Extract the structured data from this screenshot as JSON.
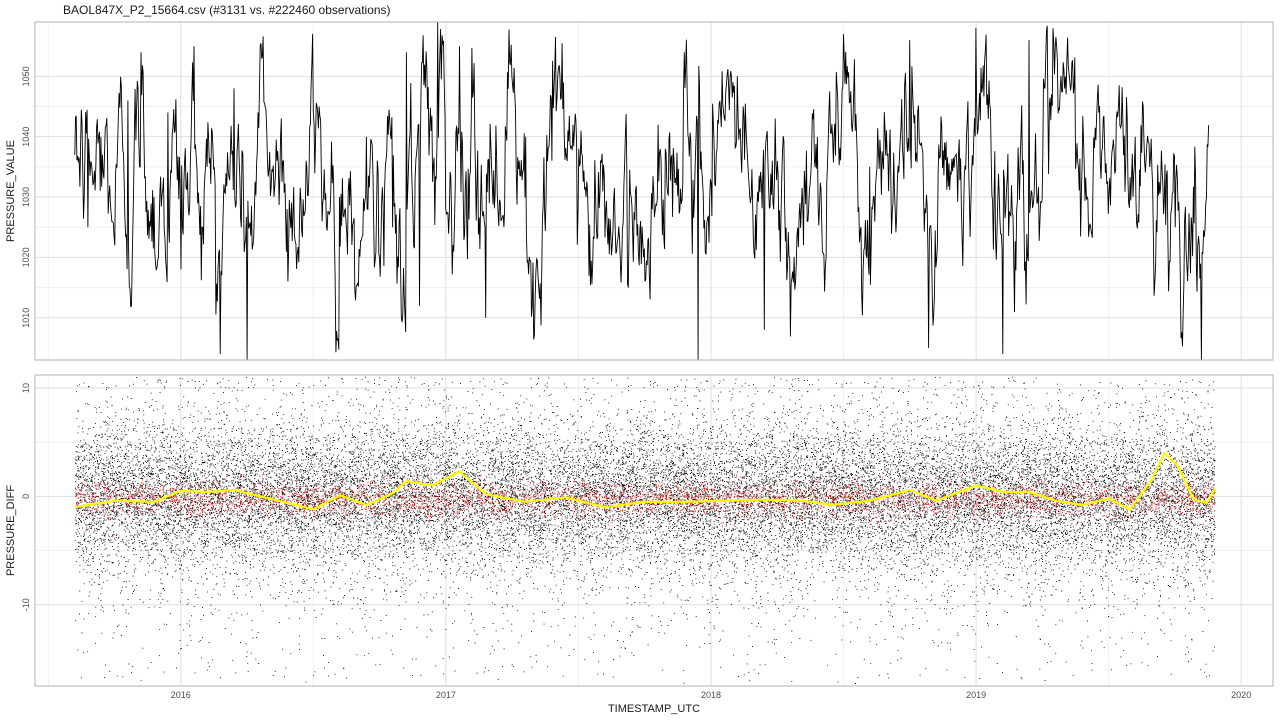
{
  "title": "BAOL847X_P2_15664.csv (#3131 vs. #222460 observations)",
  "colors": {
    "panel_border": "#b3b3b3",
    "grid_major": "#dedede",
    "grid_minor": "#efefef",
    "line": "#000000",
    "scatter": "#000000",
    "red_points": "#cc0000",
    "smooth": "#ffff00",
    "axis_text": "#4d4d4d"
  },
  "chart_data": [
    {
      "type": "line",
      "name": "top-panel",
      "ylabel": "PRESSURE_VALUE",
      "xlim": [
        2015.45,
        2020.12
      ],
      "ylim": [
        1003,
        1059
      ],
      "y_ticks": [
        1010,
        1020,
        1030,
        1040,
        1050
      ],
      "x_ticks": [
        2016,
        2017,
        2018,
        2019,
        2020
      ],
      "grid": true,
      "summary": "daily pressure series ~1003–1059 hPa, dense oscillations",
      "values": [
        {
          "x": 2015.6,
          "y": 1037
        },
        {
          "x": 2015.65,
          "y": 1025
        },
        {
          "x": 2015.7,
          "y": 1040
        },
        {
          "x": 2015.75,
          "y": 1022
        },
        {
          "x": 2015.8,
          "y": 1046
        },
        {
          "x": 2015.85,
          "y": 1054
        },
        {
          "x": 2015.9,
          "y": 1030
        },
        {
          "x": 2015.95,
          "y": 1044
        },
        {
          "x": 2016.0,
          "y": 1018
        },
        {
          "x": 2016.05,
          "y": 1055
        },
        {
          "x": 2016.1,
          "y": 1035
        },
        {
          "x": 2016.15,
          "y": 1004
        },
        {
          "x": 2016.2,
          "y": 1048
        },
        {
          "x": 2016.25,
          "y": 1003
        },
        {
          "x": 2016.3,
          "y": 1055
        },
        {
          "x": 2016.4,
          "y": 1028
        },
        {
          "x": 2016.5,
          "y": 1044
        },
        {
          "x": 2016.6,
          "y": 1030
        },
        {
          "x": 2016.7,
          "y": 1040
        },
        {
          "x": 2016.8,
          "y": 1025
        },
        {
          "x": 2016.85,
          "y": 1054
        },
        {
          "x": 2016.9,
          "y": 1012
        },
        {
          "x": 2016.97,
          "y": 1059
        },
        {
          "x": 2017.05,
          "y": 1055
        },
        {
          "x": 2017.15,
          "y": 1010
        },
        {
          "x": 2017.3,
          "y": 1040
        },
        {
          "x": 2017.4,
          "y": 1036
        },
        {
          "x": 2017.5,
          "y": 1038
        },
        {
          "x": 2017.7,
          "y": 1030
        },
        {
          "x": 2017.9,
          "y": 1054
        },
        {
          "x": 2017.95,
          "y": 1003
        },
        {
          "x": 2018.1,
          "y": 1050
        },
        {
          "x": 2018.2,
          "y": 1008
        },
        {
          "x": 2018.4,
          "y": 1040
        },
        {
          "x": 2018.6,
          "y": 1035
        },
        {
          "x": 2018.75,
          "y": 1056
        },
        {
          "x": 2018.82,
          "y": 1005
        },
        {
          "x": 2019.0,
          "y": 1058
        },
        {
          "x": 2019.1,
          "y": 1004
        },
        {
          "x": 2019.2,
          "y": 1056
        },
        {
          "x": 2019.4,
          "y": 1035
        },
        {
          "x": 2019.6,
          "y": 1040
        },
        {
          "x": 2019.75,
          "y": 1025
        },
        {
          "x": 2019.85,
          "y": 1003
        },
        {
          "x": 2019.88,
          "y": 1035
        }
      ]
    },
    {
      "type": "scatter",
      "name": "bottom-panel",
      "xlabel": "TIMESTAMP_UTC",
      "ylabel": "PRESSURE_DIFF",
      "xlim": [
        2015.45,
        2020.12
      ],
      "ylim": [
        -17.5,
        11.2
      ],
      "y_ticks": [
        -10,
        0,
        10
      ],
      "x_ticks": [
        2016,
        2017,
        2018,
        2019,
        2020
      ],
      "grid": true,
      "summary": "dense black scatter of differences (~-17 to 11), red band of points near 0, yellow smoothed trend line",
      "smooth_line": [
        {
          "x": 2015.6,
          "y": -1.0
        },
        {
          "x": 2015.75,
          "y": -0.4
        },
        {
          "x": 2015.9,
          "y": -0.5
        },
        {
          "x": 2016.0,
          "y": 0.5
        },
        {
          "x": 2016.1,
          "y": 0.4
        },
        {
          "x": 2016.2,
          "y": 0.6
        },
        {
          "x": 2016.35,
          "y": -0.3
        },
        {
          "x": 2016.5,
          "y": -1.2
        },
        {
          "x": 2016.6,
          "y": 0.1
        },
        {
          "x": 2016.7,
          "y": -0.8
        },
        {
          "x": 2016.8,
          "y": 0.3
        },
        {
          "x": 2016.85,
          "y": 1.4
        },
        {
          "x": 2016.95,
          "y": 1.0
        },
        {
          "x": 2017.05,
          "y": 2.3
        },
        {
          "x": 2017.15,
          "y": 0.2
        },
        {
          "x": 2017.3,
          "y": -0.5
        },
        {
          "x": 2017.45,
          "y": -0.1
        },
        {
          "x": 2017.6,
          "y": -1.0
        },
        {
          "x": 2017.75,
          "y": -0.5
        },
        {
          "x": 2017.9,
          "y": -0.5
        },
        {
          "x": 2018.05,
          "y": -0.4
        },
        {
          "x": 2018.2,
          "y": -0.3
        },
        {
          "x": 2018.35,
          "y": -0.4
        },
        {
          "x": 2018.45,
          "y": -0.8
        },
        {
          "x": 2018.6,
          "y": -0.4
        },
        {
          "x": 2018.75,
          "y": 0.6
        },
        {
          "x": 2018.85,
          "y": -0.4
        },
        {
          "x": 2019.0,
          "y": 1.0
        },
        {
          "x": 2019.1,
          "y": 0.4
        },
        {
          "x": 2019.2,
          "y": 0.4
        },
        {
          "x": 2019.3,
          "y": -0.4
        },
        {
          "x": 2019.4,
          "y": -0.8
        },
        {
          "x": 2019.5,
          "y": -0.2
        },
        {
          "x": 2019.58,
          "y": -1.2
        },
        {
          "x": 2019.66,
          "y": 1.5
        },
        {
          "x": 2019.71,
          "y": 4.0
        },
        {
          "x": 2019.76,
          "y": 2.8
        },
        {
          "x": 2019.82,
          "y": -0.3
        },
        {
          "x": 2019.87,
          "y": -0.6
        },
        {
          "x": 2019.9,
          "y": 0.7
        }
      ]
    }
  ]
}
